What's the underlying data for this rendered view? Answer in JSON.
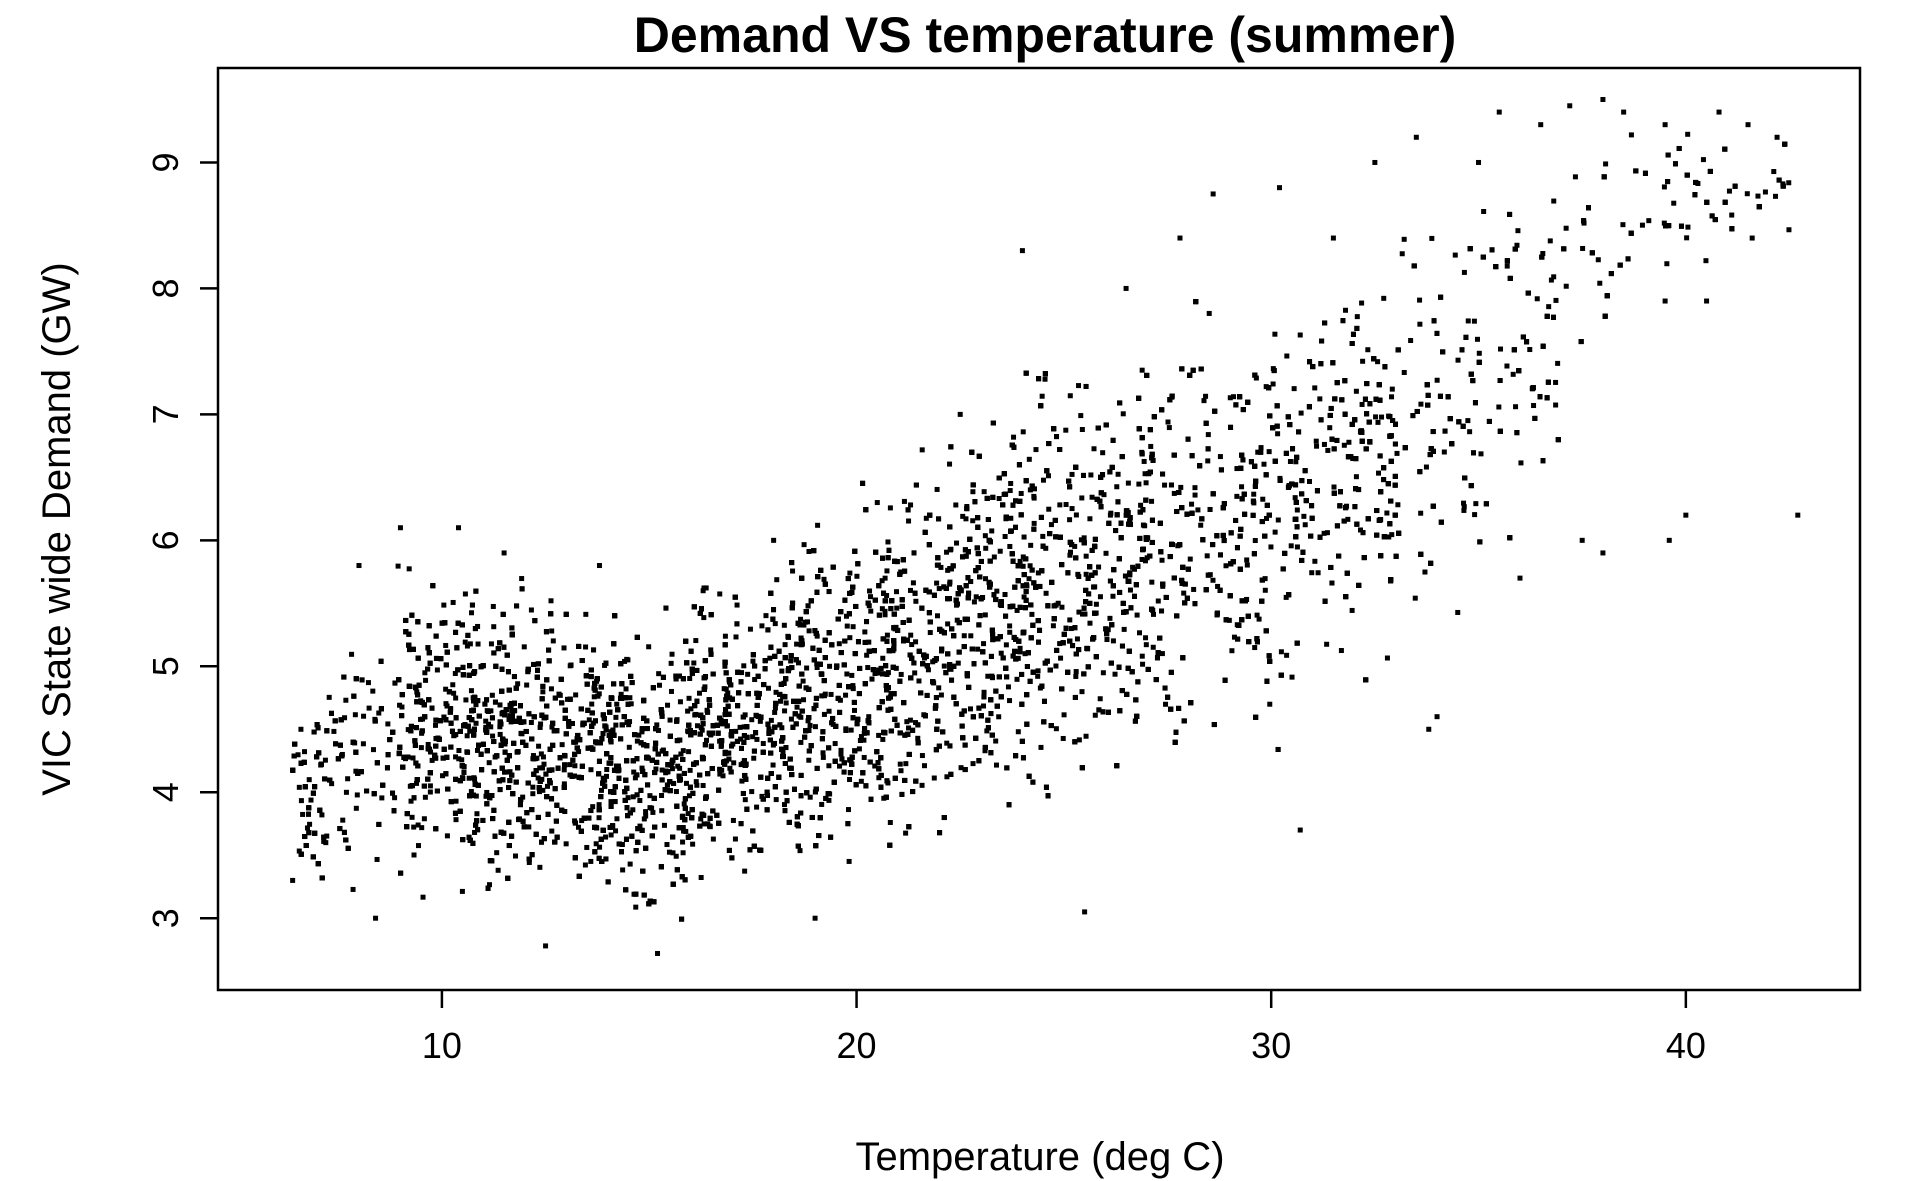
{
  "chart_data": {
    "type": "scatter",
    "title": "Demand VS temperature (summer)",
    "xlabel": "Temperature (deg C)",
    "ylabel": "VIC State wide Demand (GW)",
    "xlim": [
      4.6,
      44.2
    ],
    "ylim": [
      2.43,
      9.75
    ],
    "x_ticks": [
      10,
      20,
      30,
      40
    ],
    "y_ticks": [
      3,
      4,
      5,
      6,
      7,
      8,
      9
    ],
    "grid": false,
    "legend": "none",
    "point_color": "#000000",
    "dense_region": {
      "description_only_for_sampling": false,
      "x": [
        6.4,
        9,
        12,
        15,
        18,
        21,
        24,
        27,
        30,
        33,
        36,
        39,
        42.5
      ],
      "y_low": [
        3.2,
        2.9,
        2.8,
        2.75,
        2.95,
        3.2,
        3.5,
        3.85,
        4.2,
        4.9,
        5.6,
        7.8,
        8.3
      ],
      "y_high": [
        4.7,
        6.1,
        6.0,
        5.7,
        6.2,
        6.9,
        7.6,
        8.0,
        8.3,
        8.8,
        9.4,
        9.5,
        9.3
      ]
    },
    "sample_points": [
      [
        6.4,
        3.3
      ],
      [
        6.6,
        4.5
      ],
      [
        6.8,
        4.1
      ],
      [
        7.2,
        3.6
      ],
      [
        7.6,
        4.3
      ],
      [
        8.0,
        5.8
      ],
      [
        8.4,
        3.0
      ],
      [
        9.0,
        6.1
      ],
      [
        10.4,
        6.1
      ],
      [
        11.5,
        5.9
      ],
      [
        12.5,
        2.78
      ],
      [
        13.8,
        5.8
      ],
      [
        15.2,
        2.72
      ],
      [
        16.3,
        5.6
      ],
      [
        18.0,
        6.0
      ],
      [
        19.0,
        3.0
      ],
      [
        20.5,
        6.3
      ],
      [
        22.5,
        7.0
      ],
      [
        24.0,
        8.3
      ],
      [
        25.5,
        3.05
      ],
      [
        26.5,
        8.0
      ],
      [
        27.8,
        8.4
      ],
      [
        28.6,
        8.75
      ],
      [
        30.2,
        8.8
      ],
      [
        30.7,
        3.7
      ],
      [
        31.5,
        8.4
      ],
      [
        32.5,
        9.0
      ],
      [
        33.5,
        9.2
      ],
      [
        33.8,
        4.5
      ],
      [
        35.0,
        9.0
      ],
      [
        35.5,
        9.4
      ],
      [
        36.5,
        9.3
      ],
      [
        37.2,
        9.45
      ],
      [
        38.0,
        9.5
      ],
      [
        38.5,
        9.4
      ],
      [
        39.5,
        9.3
      ],
      [
        39.5,
        7.9
      ],
      [
        39.6,
        6.0
      ],
      [
        40.0,
        6.2
      ],
      [
        40.5,
        7.9
      ],
      [
        40.8,
        9.4
      ],
      [
        41.5,
        9.3
      ],
      [
        41.6,
        8.4
      ],
      [
        42.2,
        9.2
      ],
      [
        42.7,
        6.2
      ],
      [
        37.5,
        6.0
      ],
      [
        38.0,
        5.9
      ],
      [
        36.0,
        5.7
      ],
      [
        34.0,
        4.6
      ]
    ]
  }
}
